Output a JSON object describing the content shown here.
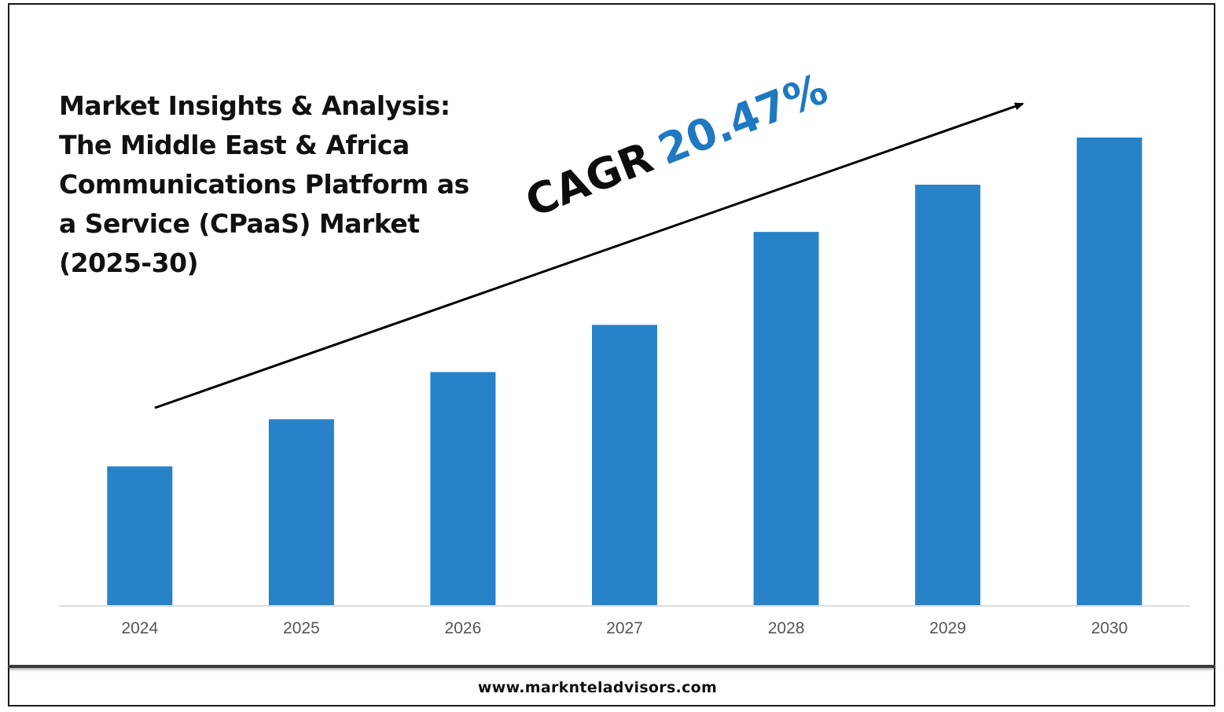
{
  "title_lines": [
    "Market Insights & Analysis:",
    "The Middle East & Africa",
    "Communications Platform as",
    "a Service (CPaaS) Market",
    "(2025-30)"
  ],
  "cagr": {
    "label": "CAGR",
    "value": "20.47%"
  },
  "footer": "www.marknteladvisors.com",
  "colors": {
    "bar": "#2882c8",
    "cagr_value": "#1f78c1",
    "axis": "#d0d0d0"
  },
  "chart_data": {
    "type": "bar",
    "title": "Market Insights & Analysis: The Middle East & Africa Communications Platform as a Service (CPaaS) Market (2025-30)",
    "categories": [
      "2024",
      "2025",
      "2026",
      "2027",
      "2028",
      "2029",
      "2030"
    ],
    "values": [
      1.0,
      1.34,
      1.68,
      2.02,
      2.69,
      3.03,
      3.37
    ],
    "xlabel": "",
    "ylabel": "",
    "ylim": [
      0,
      3.37
    ],
    "grid": false,
    "legend": "none",
    "annotations": [
      "CAGR 20.47%"
    ]
  }
}
